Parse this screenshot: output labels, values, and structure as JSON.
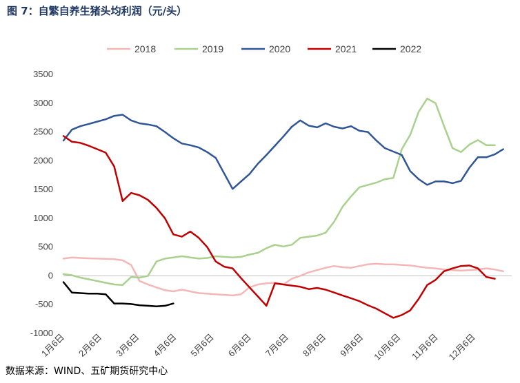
{
  "title": "图 7：自繁自养生猪头均利润（元/头）",
  "source": "数据来源：WIND、五矿期货研究中心",
  "chart_data": {
    "type": "line",
    "title": "图 7：自繁自养生猪头均利润（元/头）",
    "xlabel": "",
    "ylabel": "",
    "ylim": [
      -1000,
      3500
    ],
    "yticks": [
      -1000,
      -500,
      0,
      500,
      1000,
      1500,
      2000,
      2500,
      3000,
      3500
    ],
    "x_tick_labels": [
      "1月6日",
      "2月6日",
      "3月6日",
      "4月6日",
      "5月6日",
      "6月6日",
      "7月6日",
      "8月6日",
      "9月6日",
      "10月6日",
      "11月6日",
      "12月6日"
    ],
    "x_unit": "week_of_year",
    "xlim": [
      0,
      53
    ],
    "grid": false,
    "legend_position": "top",
    "series": [
      {
        "name": "2018",
        "color": "#f4b6b6",
        "x": [
          0,
          1,
          2,
          3,
          4,
          5,
          6,
          7,
          8,
          9,
          10,
          11,
          12,
          13,
          14,
          15,
          16,
          17,
          18,
          19,
          20,
          21,
          22,
          23,
          24,
          25,
          26,
          27,
          28,
          29,
          30,
          31,
          32,
          33,
          34,
          35,
          36,
          37,
          38,
          39,
          40,
          41,
          42,
          43,
          44,
          45,
          46,
          47,
          48,
          49,
          50,
          51,
          52
        ],
        "values": [
          300,
          320,
          310,
          305,
          300,
          295,
          290,
          270,
          190,
          -90,
          -150,
          -200,
          -250,
          -270,
          -240,
          -270,
          -300,
          -310,
          -320,
          -330,
          -340,
          -320,
          -200,
          -150,
          -130,
          -120,
          -150,
          -50,
          0,
          60,
          100,
          140,
          170,
          150,
          140,
          170,
          200,
          210,
          200,
          200,
          190,
          180,
          160,
          140,
          130,
          110,
          100,
          90,
          100,
          110,
          130,
          110,
          80
        ]
      },
      {
        "name": "2019",
        "color": "#a9d18e",
        "x": [
          0,
          1,
          2,
          3,
          4,
          5,
          6,
          7,
          8,
          9,
          10,
          11,
          12,
          13,
          14,
          15,
          16,
          17,
          18,
          19,
          20,
          21,
          22,
          23,
          24,
          25,
          26,
          27,
          28,
          29,
          30,
          31,
          32,
          33,
          34,
          35,
          36,
          37,
          38,
          39,
          40,
          41,
          42,
          43,
          44,
          45,
          46,
          47,
          48,
          49,
          50,
          51
        ],
        "values": [
          30,
          10,
          -30,
          -60,
          -90,
          -120,
          -150,
          -160,
          -20,
          -30,
          0,
          250,
          300,
          320,
          340,
          320,
          300,
          310,
          340,
          330,
          320,
          330,
          370,
          400,
          480,
          540,
          510,
          540,
          660,
          680,
          700,
          750,
          940,
          1200,
          1380,
          1540,
          1580,
          1620,
          1680,
          1700,
          2200,
          2450,
          2850,
          3080,
          3000,
          2600,
          2220,
          2150,
          2280,
          2360,
          2270,
          2270
        ]
      },
      {
        "name": "2020",
        "color": "#2f5597",
        "x": [
          0,
          1,
          2,
          3,
          4,
          5,
          6,
          7,
          8,
          9,
          10,
          11,
          12,
          13,
          14,
          15,
          16,
          17,
          18,
          19,
          20,
          21,
          22,
          23,
          24,
          25,
          26,
          27,
          28,
          29,
          30,
          31,
          32,
          33,
          34,
          35,
          36,
          37,
          38,
          39,
          40,
          41,
          42,
          43,
          44,
          45,
          46,
          47,
          48,
          49,
          50,
          51,
          52
        ],
        "values": [
          2350,
          2540,
          2600,
          2640,
          2680,
          2720,
          2780,
          2800,
          2700,
          2650,
          2630,
          2600,
          2500,
          2390,
          2300,
          2270,
          2230,
          2150,
          2050,
          1780,
          1510,
          1640,
          1770,
          1950,
          2100,
          2260,
          2420,
          2590,
          2700,
          2610,
          2580,
          2650,
          2590,
          2560,
          2600,
          2520,
          2500,
          2350,
          2220,
          2160,
          2100,
          1820,
          1680,
          1580,
          1640,
          1640,
          1610,
          1650,
          1880,
          2060,
          2060,
          2110,
          2200
        ]
      },
      {
        "name": "2021",
        "color": "#c00000",
        "x": [
          0,
          1,
          2,
          3,
          4,
          5,
          6,
          7,
          8,
          9,
          10,
          11,
          12,
          13,
          14,
          15,
          16,
          17,
          18,
          19,
          20,
          21,
          22,
          23,
          24,
          25,
          26,
          27,
          28,
          29,
          30,
          31,
          32,
          33,
          34,
          35,
          36,
          37,
          38,
          39,
          40,
          41,
          42,
          43,
          44,
          45,
          46,
          47,
          48,
          49,
          50,
          51
        ],
        "values": [
          2430,
          2330,
          2310,
          2260,
          2200,
          2140,
          1900,
          1300,
          1440,
          1400,
          1320,
          1180,
          1000,
          720,
          680,
          770,
          660,
          500,
          250,
          160,
          130,
          -40,
          -200,
          -360,
          -520,
          -130,
          -150,
          -170,
          -190,
          -230,
          -210,
          -240,
          -290,
          -340,
          -390,
          -440,
          -510,
          -570,
          -650,
          -730,
          -680,
          -600,
          -400,
          -160,
          -70,
          80,
          130,
          170,
          180,
          130,
          -20,
          -50
        ]
      },
      {
        "name": "2022",
        "color": "#000000",
        "x": [
          0,
          1,
          2,
          3,
          4,
          5,
          6,
          7,
          8,
          9,
          10,
          11,
          12,
          13
        ],
        "values": [
          -110,
          -290,
          -300,
          -310,
          -310,
          -320,
          -480,
          -480,
          -490,
          -510,
          -520,
          -530,
          -520,
          -480
        ]
      }
    ]
  }
}
